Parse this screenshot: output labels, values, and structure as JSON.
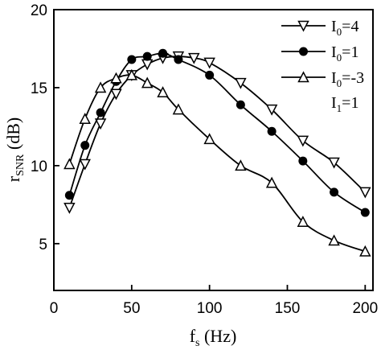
{
  "chart_data": {
    "type": "line",
    "xlabel": {
      "main": "f",
      "sub": "s",
      "rest": " (Hz)"
    },
    "ylabel": {
      "main": "r",
      "sub": "SNR",
      "rest": " (dB)"
    },
    "xlim": [
      0,
      205
    ],
    "ylim": [
      2,
      20
    ],
    "xticks": [
      0,
      50,
      100,
      150,
      200
    ],
    "yticks": [
      5,
      10,
      15,
      20
    ],
    "grid": false,
    "legend_position": "top-right",
    "series": [
      {
        "name": {
          "main": "I",
          "sub": "0",
          "rest": "=4"
        },
        "marker": "triangle-down",
        "filled": false,
        "x": [
          10,
          20,
          30,
          40,
          50,
          60,
          70,
          80,
          90,
          100,
          120,
          140,
          160,
          180,
          200
        ],
        "y": [
          7.3,
          10.1,
          12.7,
          14.6,
          15.8,
          16.5,
          16.9,
          17.0,
          16.9,
          16.6,
          15.3,
          13.6,
          11.6,
          10.2,
          8.3
        ]
      },
      {
        "name": {
          "main": "I",
          "sub": "0",
          "rest": "=1"
        },
        "marker": "circle",
        "filled": true,
        "x": [
          10,
          20,
          30,
          40,
          50,
          60,
          70,
          80,
          100,
          120,
          140,
          160,
          180,
          200
        ],
        "y": [
          8.1,
          11.3,
          13.4,
          15.4,
          16.8,
          17.0,
          17.2,
          16.8,
          15.8,
          13.9,
          12.2,
          10.3,
          8.3,
          7.0
        ]
      },
      {
        "name": {
          "main": "I",
          "sub": "0",
          "rest": "=-3"
        },
        "marker": "triangle-up",
        "filled": false,
        "x": [
          10,
          20,
          30,
          40,
          50,
          60,
          70,
          80,
          100,
          120,
          140,
          160,
          180,
          200
        ],
        "y": [
          10.1,
          13.0,
          15.0,
          15.6,
          15.8,
          15.3,
          14.7,
          13.6,
          11.7,
          10.0,
          8.9,
          6.4,
          5.2,
          4.5
        ]
      }
    ],
    "annotation": {
      "main": "I",
      "sub": "1",
      "rest": "=1"
    }
  }
}
